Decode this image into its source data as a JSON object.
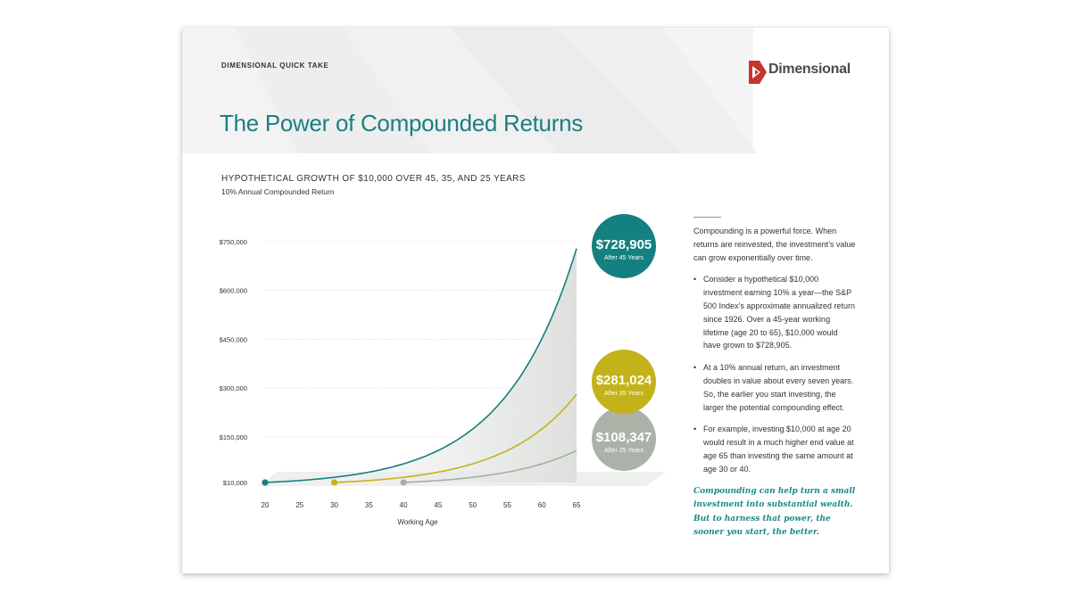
{
  "header": {
    "kicker": "DIMENSIONAL QUICK TAKE",
    "logo_text": "Dimensional",
    "title": "The Power of Compounded Returns"
  },
  "colors": {
    "teal": "#14807f",
    "gold": "#c4b21a",
    "gray": "#a7aea3",
    "title": "#1b7f83"
  },
  "chart_data": {
    "type": "line",
    "title": "HYPOTHETICAL GROWTH OF $10,000 OVER 45, 35, AND 25 YEARS",
    "subtitle": "10% Annual Compounded Return",
    "xlabel": "Working Age",
    "ylabel": "",
    "x_ticks": [
      20,
      25,
      30,
      35,
      40,
      45,
      50,
      55,
      60,
      65
    ],
    "y_ticks": [
      10000,
      150000,
      300000,
      450000,
      600000,
      750000
    ],
    "y_tick_labels": [
      "$10,000",
      "$150,000",
      "$300,000",
      "$450,000",
      "$600,000",
      "$750,000"
    ],
    "xlim": [
      20,
      65
    ],
    "ylim": [
      10000,
      750000
    ],
    "growth_rate": 0.1,
    "series": [
      {
        "start_age": 20,
        "end_age": 65,
        "start_value": 10000,
        "end_value": 728905,
        "label": "$728,905",
        "sublabel": "After 45 Years",
        "color": "#14807f"
      },
      {
        "start_age": 30,
        "end_age": 65,
        "start_value": 10000,
        "end_value": 281024,
        "label": "$281,024",
        "sublabel": "After 35 Years",
        "color": "#c4b21a"
      },
      {
        "start_age": 40,
        "end_age": 65,
        "start_value": 10000,
        "end_value": 108347,
        "label": "$108,347",
        "sublabel": "After 25 Years",
        "color": "#a7aea3"
      }
    ]
  },
  "sidebar": {
    "intro": "Compounding is a powerful force. When returns are reinvested, the investment’s value can grow exponentially over time.",
    "bullets": [
      "Consider a hypothetical $10,000 investment earning 10% a year—the S&P 500 Index’s approximate annualized return since 1926. Over a 45-year working lifetime (age 20 to 65), $10,000 would have grown to $728,905.",
      "At a 10% annual return, an investment doubles in value about every seven years. So, the earlier you start investing, the larger the potential compounding effect.",
      "For example, investing $10,000 at age 20 would result in a much higher end value at age 65 than investing the same amount at age 30 or 40."
    ],
    "quote": "Compounding can help turn a small investment into substantial wealth. But to harness that power, the sooner you start, the better."
  }
}
